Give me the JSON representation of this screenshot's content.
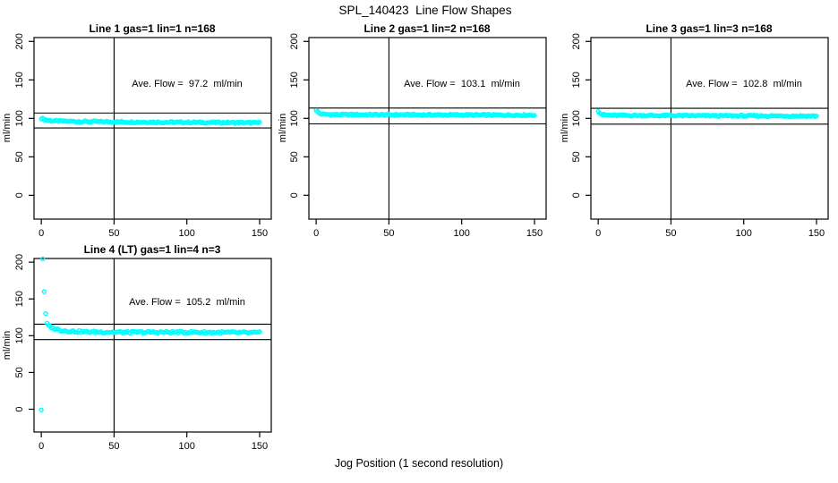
{
  "title": "SPL_140423  Line Flow Shapes",
  "xlabel": "Jog Position (1 second resolution)",
  "chart_data": {
    "type": "scatter",
    "figure_title": "SPL_140423  Line Flow Shapes",
    "xlabel": "Jog Position (1 second resolution)",
    "marker_color": "#00FFFF",
    "axis_color": "#000000",
    "x_ticks": [
      0,
      50,
      100,
      150
    ],
    "y_ticks": [
      0,
      50,
      100,
      150,
      200
    ],
    "xlim": [
      -5,
      158
    ],
    "ylim": [
      -31,
      205
    ],
    "grid": false,
    "panels": [
      {
        "title": "Line 1 gas=1 lin=1 n=168",
        "annotation": "Ave. Flow =  97.2  ml/min",
        "ave_flow": 97.2,
        "ylab": "ml/min",
        "vline_x": 50,
        "hlines": [
          106.9,
          87.5
        ],
        "x_start": 0,
        "x_end": 150,
        "noise": 1.1,
        "keyframes": [
          [
            0,
            100.3
          ],
          [
            1,
            99.4
          ],
          [
            2,
            98.6
          ],
          [
            4,
            97.6
          ],
          [
            8,
            96.8
          ],
          [
            15,
            96.2
          ],
          [
            30,
            95.8
          ],
          [
            60,
            95.3
          ],
          [
            100,
            94.8
          ],
          [
            150,
            94.2
          ]
        ],
        "outliers": []
      },
      {
        "title": "Line 2 gas=1 lin=2 n=168",
        "annotation": "Ave. Flow =  103.1  ml/min",
        "ave_flow": 103.1,
        "ylab": "ml/min",
        "vline_x": 50,
        "hlines": [
          113.4,
          92.8
        ],
        "x_start": 0,
        "x_end": 150,
        "noise": 1.0,
        "keyframes": [
          [
            0,
            110.8
          ],
          [
            1,
            108.5
          ],
          [
            2,
            106.8
          ],
          [
            3,
            105.8
          ],
          [
            6,
            105.2
          ],
          [
            10,
            104.9
          ],
          [
            30,
            104.8
          ],
          [
            80,
            104.6
          ],
          [
            150,
            104.2
          ]
        ],
        "outliers": []
      },
      {
        "title": "Line 3 gas=1 lin=3 n=168",
        "annotation": "Ave. Flow =  102.8  ml/min",
        "ave_flow": 102.8,
        "ylab": "ml/min",
        "vline_x": 50,
        "hlines": [
          113.1,
          92.5
        ],
        "x_start": 0,
        "x_end": 150,
        "noise": 1.0,
        "keyframes": [
          [
            0,
            110.0
          ],
          [
            1,
            107.5
          ],
          [
            2,
            105.8
          ],
          [
            3,
            104.8
          ],
          [
            6,
            104.2
          ],
          [
            10,
            103.9
          ],
          [
            30,
            103.7
          ],
          [
            80,
            103.4
          ],
          [
            150,
            103.0
          ]
        ],
        "outliers": []
      },
      {
        "title": "Line 4 (LT) gas=1 lin=4 n=3",
        "annotation": "Ave. Flow =  105.2  ml/min",
        "ave_flow": 105.2,
        "ylab": "ml/min",
        "vline_x": 50,
        "hlines": [
          115.7,
          94.7
        ],
        "x_start": 6,
        "x_end": 150,
        "noise": 1.5,
        "keyframes": [
          [
            6,
            112.5
          ],
          [
            8,
            110.5
          ],
          [
            12,
            108.0
          ],
          [
            18,
            106.3
          ],
          [
            30,
            105.2
          ],
          [
            60,
            104.6
          ],
          [
            100,
            104.8
          ],
          [
            150,
            103.9
          ]
        ],
        "outliers": [
          [
            0,
            -1
          ],
          [
            1,
            204.5
          ],
          [
            2,
            160
          ],
          [
            3,
            130
          ],
          [
            4,
            117
          ],
          [
            5,
            114
          ]
        ]
      }
    ]
  }
}
